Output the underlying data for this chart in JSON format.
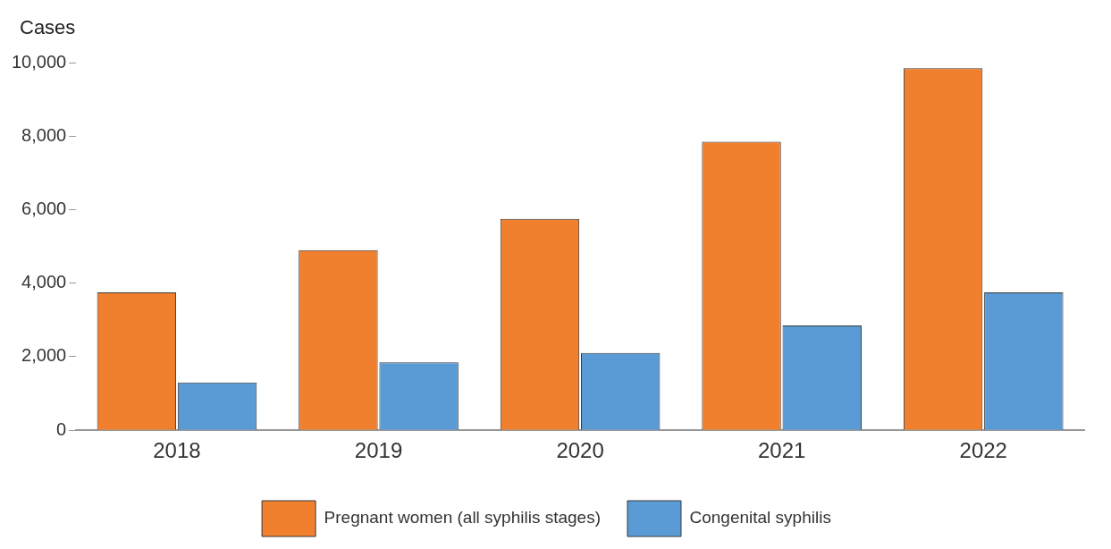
{
  "chart_data": {
    "type": "bar",
    "ylabel": "Cases",
    "categories": [
      "2018",
      "2019",
      "2020",
      "2021",
      "2022"
    ],
    "series": [
      {
        "name": "Pregnant women (all syphilis stages)",
        "color": "#f07f2e",
        "values": [
          3750,
          4900,
          5750,
          7850,
          9850
        ]
      },
      {
        "name": "Congenital syphilis",
        "color": "#5b9bd5",
        "values": [
          1300,
          1850,
          2100,
          2850,
          3750
        ]
      }
    ],
    "ylim": [
      0,
      10000
    ],
    "yticks": [
      {
        "value": 0,
        "label": "0"
      },
      {
        "value": 2000,
        "label": "2,000"
      },
      {
        "value": 4000,
        "label": "4,000"
      },
      {
        "value": 6000,
        "label": "6,000"
      },
      {
        "value": 8000,
        "label": "8,000"
      },
      {
        "value": 10000,
        "label": "10,000"
      }
    ],
    "grid": false,
    "legend": "bottom"
  }
}
